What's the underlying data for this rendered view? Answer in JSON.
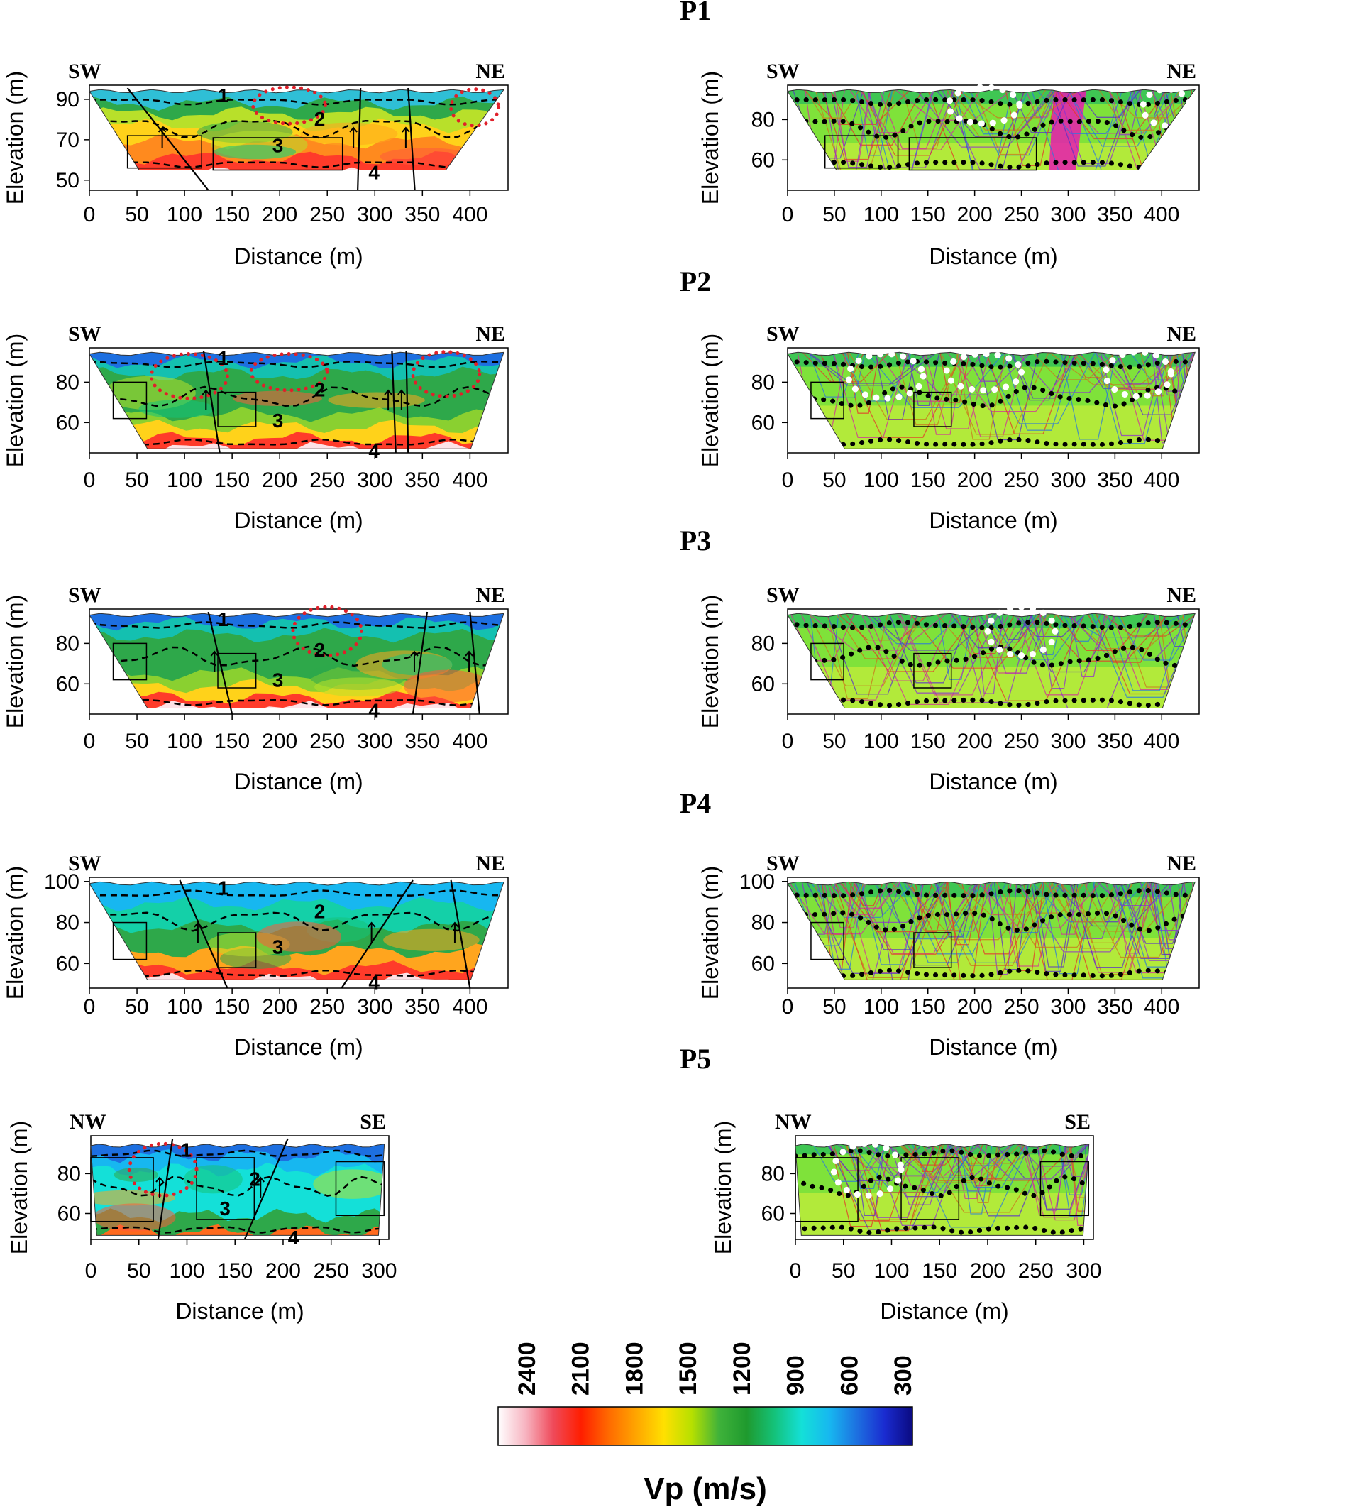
{
  "figure": {
    "colorbar": {
      "label": "Vp (m/s)",
      "ticks": [
        "2400",
        "2100",
        "1800",
        "1500",
        "1200",
        "900",
        "600",
        "300"
      ],
      "colors": [
        "#ffffff",
        "#f7b3c0",
        "#ef4a5a",
        "#ff1e00",
        "#ff6a00",
        "#ffa500",
        "#ffe000",
        "#b7e000",
        "#3fb23a",
        "#1f9a2e",
        "#14c27a",
        "#14e0d8",
        "#17b7f0",
        "#1d6fe0",
        "#1a2bd0",
        "#0a0a80"
      ]
    },
    "layer_colors": {
      "1": "#2fbfd6",
      "2": "#2ea84a",
      "3": "#ffd21a",
      "4": "#ff5a4a",
      "5": "#fde2e6"
    },
    "ray_colors": [
      "#d0309a",
      "#8e2fd0",
      "#2d7ad8",
      "#e23a2a",
      "#5a30c8",
      "#c87a1e"
    ]
  },
  "chart_data": [
    {
      "id": "P1",
      "type": "heatmap",
      "title": "P1",
      "left": {
        "left_label": "SW",
        "right_label": "NE",
        "xlabel": "Distance (m)",
        "ylabel": "Elevation (m)",
        "xlim": [
          0,
          440
        ],
        "ylim": [
          45,
          97
        ],
        "xticks": [
          "0",
          "50",
          "100",
          "150",
          "200",
          "250",
          "300",
          "350",
          "400"
        ],
        "yticks": [
          "50",
          "70",
          "90"
        ],
        "ytick_values": [
          50,
          70,
          90
        ],
        "layer_labels": [
          "1",
          "2",
          "3",
          "4"
        ],
        "surface_elevation": 94,
        "base_elevation": 55
      },
      "right": {
        "left_label": "SW",
        "right_label": "NE",
        "xlabel": "Distance (m)",
        "ylabel": "Elevation (m)",
        "xlim": [
          0,
          440
        ],
        "ylim": [
          45,
          97
        ],
        "xticks": [
          "0",
          "50",
          "100",
          "150",
          "200",
          "250",
          "300",
          "350",
          "400"
        ],
        "yticks": [
          "60",
          "80"
        ],
        "ytick_values": [
          60,
          80
        ]
      }
    },
    {
      "id": "P2",
      "type": "heatmap",
      "title": "P2",
      "left": {
        "left_label": "SW",
        "right_label": "NE",
        "xlabel": "Distance (m)",
        "ylabel": "Elevation (m)",
        "xlim": [
          0,
          440
        ],
        "ylim": [
          45,
          97
        ],
        "xticks": [
          "0",
          "50",
          "100",
          "150",
          "200",
          "250",
          "300",
          "350",
          "400"
        ],
        "yticks": [
          "60",
          "80"
        ],
        "ytick_values": [
          60,
          80
        ],
        "layer_labels": [
          "1",
          "2",
          "3",
          "4"
        ],
        "surface_elevation": 94,
        "base_elevation": 47
      },
      "right": {
        "left_label": "SW",
        "right_label": "NE",
        "xlabel": "Distance (m)",
        "ylabel": "Elevation (m)",
        "xlim": [
          0,
          440
        ],
        "ylim": [
          45,
          97
        ],
        "xticks": [
          "0",
          "50",
          "100",
          "150",
          "200",
          "250",
          "300",
          "350",
          "400"
        ],
        "yticks": [
          "60",
          "80"
        ],
        "ytick_values": [
          60,
          80
        ]
      }
    },
    {
      "id": "P3",
      "type": "heatmap",
      "title": "P3",
      "left": {
        "left_label": "SW",
        "right_label": "NE",
        "xlabel": "Distance (m)",
        "ylabel": "Elevation (m)",
        "xlim": [
          0,
          440
        ],
        "ylim": [
          45,
          97
        ],
        "xticks": [
          "0",
          "50",
          "100",
          "150",
          "200",
          "250",
          "300",
          "350",
          "400"
        ],
        "yticks": [
          "60",
          "80"
        ],
        "ytick_values": [
          60,
          80
        ],
        "layer_labels": [
          "1",
          "2",
          "3",
          "4"
        ],
        "surface_elevation": 94,
        "base_elevation": 48
      },
      "right": {
        "left_label": "SW",
        "right_label": "NE",
        "xlabel": "Distance (m)",
        "ylabel": "Elevation (m)",
        "xlim": [
          0,
          440
        ],
        "ylim": [
          45,
          97
        ],
        "xticks": [
          "0",
          "50",
          "100",
          "150",
          "200",
          "250",
          "300",
          "350",
          "400"
        ],
        "yticks": [
          "60",
          "80"
        ],
        "ytick_values": [
          60,
          80
        ]
      }
    },
    {
      "id": "P4",
      "type": "heatmap",
      "title": "P4",
      "left": {
        "left_label": "SW",
        "right_label": "NE",
        "xlabel": "Distance (m)",
        "ylabel": "Elevation (m)",
        "xlim": [
          0,
          440
        ],
        "ylim": [
          48,
          102
        ],
        "xticks": [
          "0",
          "50",
          "100",
          "150",
          "200",
          "250",
          "300",
          "350",
          "400"
        ],
        "yticks": [
          "60",
          "80",
          "100"
        ],
        "ytick_values": [
          60,
          80,
          100
        ],
        "layer_labels": [
          "1",
          "2",
          "3",
          "4"
        ],
        "surface_elevation": 99,
        "base_elevation": 52
      },
      "right": {
        "left_label": "SW",
        "right_label": "NE",
        "xlabel": "Distance (m)",
        "ylabel": "Elevation (m)",
        "xlim": [
          0,
          440
        ],
        "ylim": [
          48,
          102
        ],
        "xticks": [
          "0",
          "50",
          "100",
          "150",
          "200",
          "250",
          "300",
          "350",
          "400"
        ],
        "yticks": [
          "60",
          "80",
          "100"
        ],
        "ytick_values": [
          60,
          80,
          100
        ]
      }
    },
    {
      "id": "P5",
      "type": "heatmap",
      "title": "P5",
      "left": {
        "left_label": "NW",
        "right_label": "SE",
        "xlabel": "Distance (m)",
        "ylabel": "Elevation (m)",
        "xlim": [
          0,
          310
        ],
        "ylim": [
          47,
          99
        ],
        "xticks": [
          "0",
          "50",
          "100",
          "150",
          "200",
          "250",
          "300"
        ],
        "yticks": [
          "60",
          "80"
        ],
        "ytick_values": [
          60,
          80
        ],
        "layer_labels": [
          "1",
          "2",
          "3",
          "4"
        ],
        "surface_elevation": 94,
        "base_elevation": 49
      },
      "right": {
        "left_label": "NW",
        "right_label": "SE",
        "xlabel": "Distance (m)",
        "ylabel": "Elevation (m)",
        "xlim": [
          0,
          310
        ],
        "ylim": [
          47,
          99
        ],
        "xticks": [
          "0",
          "50",
          "100",
          "150",
          "200",
          "250",
          "300"
        ],
        "yticks": [
          "60",
          "80"
        ],
        "ytick_values": [
          60,
          80
        ]
      }
    }
  ]
}
